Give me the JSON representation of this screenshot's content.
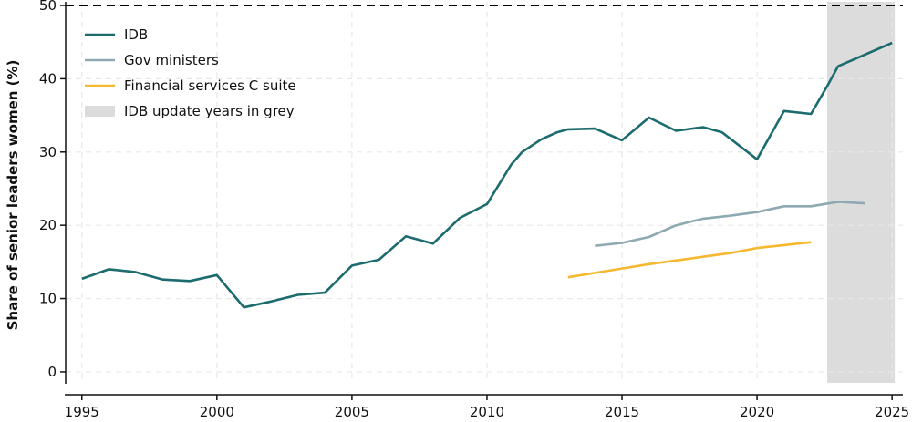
{
  "chart_data": {
    "type": "line",
    "title": "",
    "xlabel": "",
    "ylabel": "Share of senior leaders women (%)",
    "xlim": [
      1994.4,
      2025.4
    ],
    "ylim": [
      -1.5,
      50.5
    ],
    "x_ticks": [
      1995,
      2000,
      2005,
      2010,
      2015,
      2020,
      2025
    ],
    "y_ticks": [
      0,
      10,
      20,
      30,
      40,
      50
    ],
    "grid": true,
    "legend_position": "top-left",
    "reference_line": {
      "y": 50,
      "style": "dashed",
      "color": "#000000"
    },
    "shaded_region": {
      "x_start": 2022.6,
      "x_end": 2025.1,
      "color": "#dcdcdc",
      "label": "IDB update years in grey"
    },
    "series": [
      {
        "name": "IDB",
        "color": "#1c6b6e",
        "x": [
          1995,
          1996,
          1997,
          1998,
          1999,
          2000,
          2001,
          2002,
          2003,
          2004,
          2005,
          2006,
          2007,
          2008,
          2009,
          2010,
          2010.9,
          2011.3,
          2012,
          2012.6,
          2013,
          2014,
          2015,
          2016,
          2017,
          2018,
          2018.7,
          2020,
          2021,
          2022,
          2022.6,
          2023,
          2025
        ],
        "values": [
          12.7,
          14.0,
          13.6,
          12.6,
          12.4,
          13.2,
          8.8,
          9.6,
          10.5,
          10.8,
          14.5,
          15.3,
          18.5,
          17.5,
          21.0,
          22.9,
          28.3,
          30.0,
          31.7,
          32.7,
          33.1,
          33.2,
          31.6,
          34.7,
          32.9,
          33.4,
          32.7,
          29.0,
          35.6,
          35.2,
          39.0,
          41.7,
          44.9
        ]
      },
      {
        "name": "Gov ministers",
        "color": "#8fa9b0",
        "x": [
          2014,
          2015,
          2016,
          2017,
          2018,
          2019,
          2020,
          2021,
          2022,
          2023,
          2024
        ],
        "values": [
          17.2,
          17.6,
          18.4,
          20.0,
          20.9,
          21.3,
          21.8,
          22.6,
          22.6,
          23.2,
          23.0
        ]
      },
      {
        "name": "Financial services C suite",
        "color": "#f6b830",
        "x": [
          2013,
          2014,
          2015,
          2016,
          2017,
          2018,
          2019,
          2020,
          2021,
          2022
        ],
        "values": [
          12.9,
          13.5,
          14.1,
          14.7,
          15.2,
          15.7,
          16.2,
          16.9,
          17.3,
          17.7
        ]
      }
    ]
  }
}
